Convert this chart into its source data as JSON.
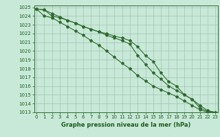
{
  "x": [
    0,
    1,
    2,
    3,
    4,
    5,
    6,
    7,
    8,
    9,
    10,
    11,
    12,
    13,
    14,
    15,
    16,
    17,
    18,
    19,
    20,
    21,
    22,
    23
  ],
  "line1": [
    1024.8,
    1024.7,
    1024.0,
    1023.8,
    1023.5,
    1023.2,
    1022.8,
    1022.5,
    1022.2,
    1022.0,
    1021.7,
    1021.5,
    1021.2,
    1020.5,
    1019.5,
    1018.8,
    1017.5,
    1016.5,
    1016.0,
    1015.0,
    1014.5,
    1013.8,
    1013.2,
    1013.0
  ],
  "line2": [
    1024.8,
    1024.0,
    1023.8,
    1023.3,
    1022.8,
    1022.3,
    1021.8,
    1021.2,
    1020.7,
    1020.0,
    1019.3,
    1018.6,
    1018.0,
    1017.2,
    1016.6,
    1016.0,
    1015.6,
    1015.2,
    1014.8,
    1014.3,
    1013.8,
    1013.3,
    1013.0,
    1012.9
  ],
  "line3": [
    1024.8,
    1024.7,
    1024.3,
    1023.9,
    1023.5,
    1023.2,
    1022.8,
    1022.5,
    1022.2,
    1021.8,
    1021.5,
    1021.2,
    1020.8,
    1019.5,
    1018.5,
    1017.5,
    1016.8,
    1016.0,
    1015.5,
    1015.0,
    1014.5,
    1013.5,
    1013.1,
    1013.0
  ],
  "ylim": [
    1013,
    1025
  ],
  "xlim": [
    -0.3,
    23.3
  ],
  "yticks": [
    1013,
    1014,
    1015,
    1016,
    1017,
    1018,
    1019,
    1020,
    1021,
    1022,
    1023,
    1024,
    1025
  ],
  "xticks": [
    0,
    1,
    2,
    3,
    4,
    5,
    6,
    7,
    8,
    9,
    10,
    11,
    12,
    13,
    14,
    15,
    16,
    17,
    18,
    19,
    20,
    21,
    22,
    23
  ],
  "xlabel": "Graphe pression niveau de la mer (hPa)",
  "line_color": "#2d6a2d",
  "bg_color": "#c8e8d8",
  "grid_color": "#99bbaa",
  "axis_color": "#2d6a2d",
  "label_color": "#1a5c1a",
  "marker": "*",
  "markersize": 3,
  "linewidth": 0.8,
  "tick_fontsize": 5,
  "xlabel_fontsize": 6
}
